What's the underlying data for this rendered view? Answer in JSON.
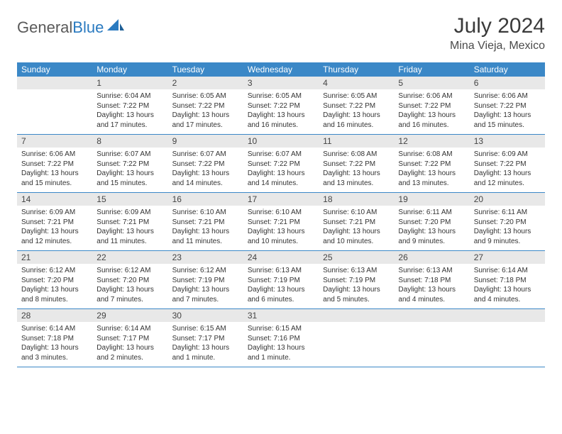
{
  "brand": {
    "part1": "General",
    "part2": "Blue"
  },
  "title": "July 2024",
  "location": "Mina Vieja, Mexico",
  "colors": {
    "header_bg": "#3b88c7",
    "header_text": "#ffffff",
    "daynum_bg": "#e8e8e8",
    "brand_gray": "#5a5a5a",
    "brand_blue": "#2a7ac0"
  },
  "day_names": [
    "Sunday",
    "Monday",
    "Tuesday",
    "Wednesday",
    "Thursday",
    "Friday",
    "Saturday"
  ],
  "weeks": [
    [
      {
        "n": "",
        "sr": "",
        "ss": "",
        "dl1": "",
        "dl2": ""
      },
      {
        "n": "1",
        "sr": "Sunrise: 6:04 AM",
        "ss": "Sunset: 7:22 PM",
        "dl1": "Daylight: 13 hours",
        "dl2": "and 17 minutes."
      },
      {
        "n": "2",
        "sr": "Sunrise: 6:05 AM",
        "ss": "Sunset: 7:22 PM",
        "dl1": "Daylight: 13 hours",
        "dl2": "and 17 minutes."
      },
      {
        "n": "3",
        "sr": "Sunrise: 6:05 AM",
        "ss": "Sunset: 7:22 PM",
        "dl1": "Daylight: 13 hours",
        "dl2": "and 16 minutes."
      },
      {
        "n": "4",
        "sr": "Sunrise: 6:05 AM",
        "ss": "Sunset: 7:22 PM",
        "dl1": "Daylight: 13 hours",
        "dl2": "and 16 minutes."
      },
      {
        "n": "5",
        "sr": "Sunrise: 6:06 AM",
        "ss": "Sunset: 7:22 PM",
        "dl1": "Daylight: 13 hours",
        "dl2": "and 16 minutes."
      },
      {
        "n": "6",
        "sr": "Sunrise: 6:06 AM",
        "ss": "Sunset: 7:22 PM",
        "dl1": "Daylight: 13 hours",
        "dl2": "and 15 minutes."
      }
    ],
    [
      {
        "n": "7",
        "sr": "Sunrise: 6:06 AM",
        "ss": "Sunset: 7:22 PM",
        "dl1": "Daylight: 13 hours",
        "dl2": "and 15 minutes."
      },
      {
        "n": "8",
        "sr": "Sunrise: 6:07 AM",
        "ss": "Sunset: 7:22 PM",
        "dl1": "Daylight: 13 hours",
        "dl2": "and 15 minutes."
      },
      {
        "n": "9",
        "sr": "Sunrise: 6:07 AM",
        "ss": "Sunset: 7:22 PM",
        "dl1": "Daylight: 13 hours",
        "dl2": "and 14 minutes."
      },
      {
        "n": "10",
        "sr": "Sunrise: 6:07 AM",
        "ss": "Sunset: 7:22 PM",
        "dl1": "Daylight: 13 hours",
        "dl2": "and 14 minutes."
      },
      {
        "n": "11",
        "sr": "Sunrise: 6:08 AM",
        "ss": "Sunset: 7:22 PM",
        "dl1": "Daylight: 13 hours",
        "dl2": "and 13 minutes."
      },
      {
        "n": "12",
        "sr": "Sunrise: 6:08 AM",
        "ss": "Sunset: 7:22 PM",
        "dl1": "Daylight: 13 hours",
        "dl2": "and 13 minutes."
      },
      {
        "n": "13",
        "sr": "Sunrise: 6:09 AM",
        "ss": "Sunset: 7:22 PM",
        "dl1": "Daylight: 13 hours",
        "dl2": "and 12 minutes."
      }
    ],
    [
      {
        "n": "14",
        "sr": "Sunrise: 6:09 AM",
        "ss": "Sunset: 7:21 PM",
        "dl1": "Daylight: 13 hours",
        "dl2": "and 12 minutes."
      },
      {
        "n": "15",
        "sr": "Sunrise: 6:09 AM",
        "ss": "Sunset: 7:21 PM",
        "dl1": "Daylight: 13 hours",
        "dl2": "and 11 minutes."
      },
      {
        "n": "16",
        "sr": "Sunrise: 6:10 AM",
        "ss": "Sunset: 7:21 PM",
        "dl1": "Daylight: 13 hours",
        "dl2": "and 11 minutes."
      },
      {
        "n": "17",
        "sr": "Sunrise: 6:10 AM",
        "ss": "Sunset: 7:21 PM",
        "dl1": "Daylight: 13 hours",
        "dl2": "and 10 minutes."
      },
      {
        "n": "18",
        "sr": "Sunrise: 6:10 AM",
        "ss": "Sunset: 7:21 PM",
        "dl1": "Daylight: 13 hours",
        "dl2": "and 10 minutes."
      },
      {
        "n": "19",
        "sr": "Sunrise: 6:11 AM",
        "ss": "Sunset: 7:20 PM",
        "dl1": "Daylight: 13 hours",
        "dl2": "and 9 minutes."
      },
      {
        "n": "20",
        "sr": "Sunrise: 6:11 AM",
        "ss": "Sunset: 7:20 PM",
        "dl1": "Daylight: 13 hours",
        "dl2": "and 9 minutes."
      }
    ],
    [
      {
        "n": "21",
        "sr": "Sunrise: 6:12 AM",
        "ss": "Sunset: 7:20 PM",
        "dl1": "Daylight: 13 hours",
        "dl2": "and 8 minutes."
      },
      {
        "n": "22",
        "sr": "Sunrise: 6:12 AM",
        "ss": "Sunset: 7:20 PM",
        "dl1": "Daylight: 13 hours",
        "dl2": "and 7 minutes."
      },
      {
        "n": "23",
        "sr": "Sunrise: 6:12 AM",
        "ss": "Sunset: 7:19 PM",
        "dl1": "Daylight: 13 hours",
        "dl2": "and 7 minutes."
      },
      {
        "n": "24",
        "sr": "Sunrise: 6:13 AM",
        "ss": "Sunset: 7:19 PM",
        "dl1": "Daylight: 13 hours",
        "dl2": "and 6 minutes."
      },
      {
        "n": "25",
        "sr": "Sunrise: 6:13 AM",
        "ss": "Sunset: 7:19 PM",
        "dl1": "Daylight: 13 hours",
        "dl2": "and 5 minutes."
      },
      {
        "n": "26",
        "sr": "Sunrise: 6:13 AM",
        "ss": "Sunset: 7:18 PM",
        "dl1": "Daylight: 13 hours",
        "dl2": "and 4 minutes."
      },
      {
        "n": "27",
        "sr": "Sunrise: 6:14 AM",
        "ss": "Sunset: 7:18 PM",
        "dl1": "Daylight: 13 hours",
        "dl2": "and 4 minutes."
      }
    ],
    [
      {
        "n": "28",
        "sr": "Sunrise: 6:14 AM",
        "ss": "Sunset: 7:18 PM",
        "dl1": "Daylight: 13 hours",
        "dl2": "and 3 minutes."
      },
      {
        "n": "29",
        "sr": "Sunrise: 6:14 AM",
        "ss": "Sunset: 7:17 PM",
        "dl1": "Daylight: 13 hours",
        "dl2": "and 2 minutes."
      },
      {
        "n": "30",
        "sr": "Sunrise: 6:15 AM",
        "ss": "Sunset: 7:17 PM",
        "dl1": "Daylight: 13 hours",
        "dl2": "and 1 minute."
      },
      {
        "n": "31",
        "sr": "Sunrise: 6:15 AM",
        "ss": "Sunset: 7:16 PM",
        "dl1": "Daylight: 13 hours",
        "dl2": "and 1 minute."
      },
      {
        "n": "",
        "sr": "",
        "ss": "",
        "dl1": "",
        "dl2": ""
      },
      {
        "n": "",
        "sr": "",
        "ss": "",
        "dl1": "",
        "dl2": ""
      },
      {
        "n": "",
        "sr": "",
        "ss": "",
        "dl1": "",
        "dl2": ""
      }
    ]
  ]
}
